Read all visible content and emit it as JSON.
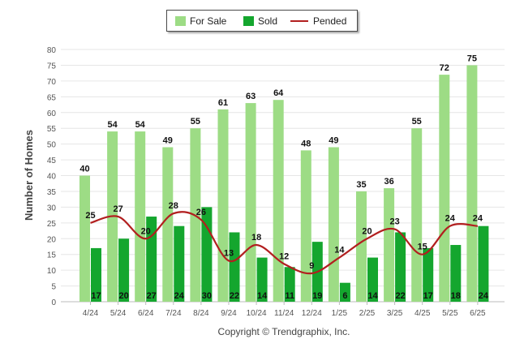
{
  "legend": {
    "for_sale": "For Sale",
    "sold": "Sold",
    "pended": "Pended"
  },
  "copyright": "Copyright © Trendgraphix, Inc.",
  "colors": {
    "for_sale": "#9ddc85",
    "sold": "#14a62e",
    "pended": "#b21f1f",
    "grid": "#e6e6e6",
    "axis_text": "#555555"
  },
  "chart_data": {
    "type": "bar",
    "categories": [
      "4/24",
      "5/24",
      "6/24",
      "7/24",
      "8/24",
      "9/24",
      "10/24",
      "11/24",
      "12/24",
      "1/25",
      "2/25",
      "3/25",
      "4/25",
      "5/25",
      "6/25"
    ],
    "series": [
      {
        "name": "For Sale",
        "type": "bar",
        "values": [
          40,
          54,
          54,
          49,
          55,
          61,
          63,
          64,
          48,
          49,
          35,
          36,
          55,
          72,
          75
        ]
      },
      {
        "name": "Sold",
        "type": "bar",
        "values": [
          17,
          20,
          27,
          24,
          30,
          22,
          14,
          11,
          19,
          6,
          14,
          22,
          17,
          18,
          24
        ]
      },
      {
        "name": "Pended",
        "type": "line",
        "values": [
          25,
          27,
          20,
          28,
          26,
          13,
          18,
          12,
          9,
          14,
          20,
          23,
          15,
          24,
          24
        ]
      }
    ],
    "ylabel": "Number of Homes",
    "xlabel": "",
    "ylim": [
      0,
      80
    ],
    "yticks": [
      0,
      5,
      10,
      15,
      20,
      25,
      30,
      35,
      40,
      45,
      50,
      55,
      60,
      65,
      70,
      75,
      80
    ],
    "grid": true,
    "legend_position": "top-center"
  }
}
